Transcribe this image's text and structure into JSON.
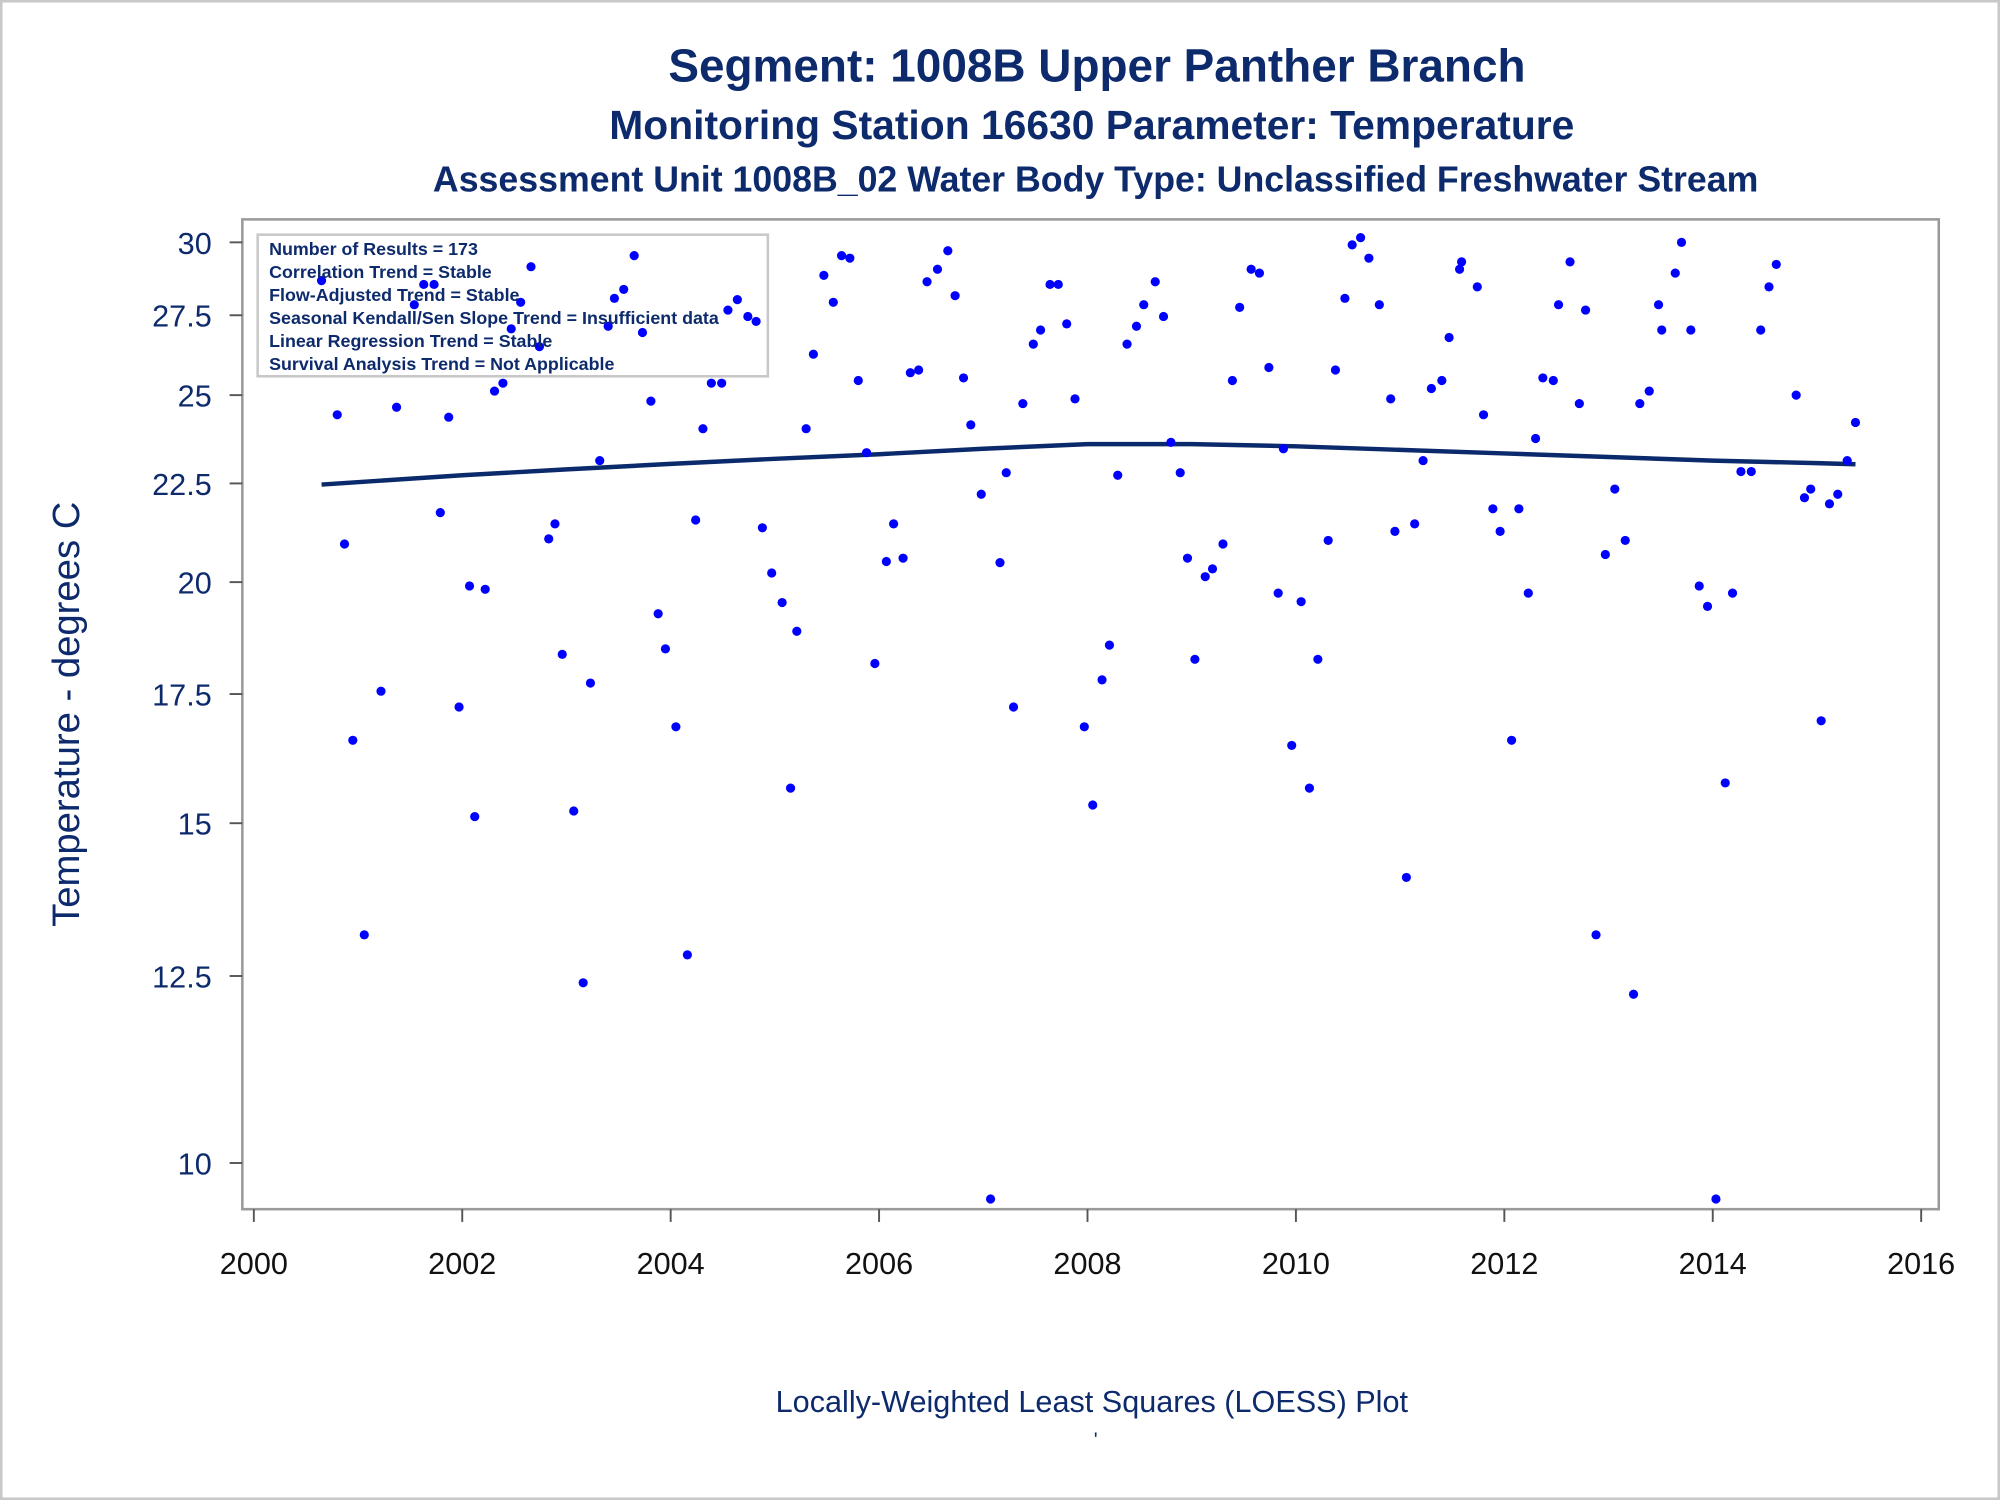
{
  "chart_data": {
    "type": "scatter",
    "title": "Segment: 1008B  Upper Panther Branch",
    "subtitle": "Monitoring Station 16630 Parameter: Temperature",
    "subtitle2": "Assessment Unit 1008B_02   Water Body Type: Unclassified Freshwater Stream",
    "xlabel": "",
    "ylabel": "Temperature - degrees C",
    "footnote": "Locally-Weighted Least Squares (LOESS) Plot",
    "footnote_mark": "'",
    "xlim": [
      2000,
      2016
    ],
    "ylim": [
      9.4,
      30.7
    ],
    "yscale": "log",
    "xticks": [
      "2000",
      "2002",
      "2004",
      "2006",
      "2008",
      "2010",
      "2012",
      "2014",
      "2016"
    ],
    "xtick_values": [
      2000,
      2002,
      2004,
      2006,
      2008,
      2010,
      2012,
      2014,
      2016
    ],
    "yticks": [
      "30",
      "27.5",
      "25",
      "22.5",
      "20",
      "17.5",
      "15",
      "12.5",
      "10"
    ],
    "ytick_values": [
      30,
      27.5,
      25,
      22.5,
      20,
      17.5,
      15,
      12.5,
      10
    ],
    "grid": false,
    "legend": {
      "placement": "top-left",
      "lines": [
        "Number of Results = 173",
        "Correlation Trend = Stable",
        "Flow-Adjusted Trend = Stable",
        "Seasonal Kendall/Sen Slope Trend = Insufficient data",
        "Linear Regression Trend = Stable",
        "Survival Analysis Trend = Not Applicable"
      ]
    },
    "colors": {
      "points": "#0000ff",
      "loess": "#0b2a6b",
      "text": "#0d2a6c"
    },
    "series": [
      {
        "name": "Temperature",
        "type": "scatter",
        "points": [
          [
            2000.65,
            28.66
          ],
          [
            2000.8,
            24.42
          ],
          [
            2000.87,
            20.93
          ],
          [
            2000.95,
            16.56
          ],
          [
            2001.06,
            13.13
          ],
          [
            2001.22,
            17.56
          ],
          [
            2001.37,
            24.64
          ],
          [
            2001.54,
            27.85
          ],
          [
            2001.63,
            28.53
          ],
          [
            2001.73,
            28.53
          ],
          [
            2001.79,
            21.73
          ],
          [
            2001.87,
            24.35
          ],
          [
            2001.97,
            17.23
          ],
          [
            2002.07,
            19.91
          ],
          [
            2002.12,
            15.12
          ],
          [
            2002.22,
            19.83
          ],
          [
            2002.31,
            25.12
          ],
          [
            2002.39,
            25.36
          ],
          [
            2002.47,
            27.06
          ],
          [
            2002.56,
            27.93
          ],
          [
            2002.66,
            29.14
          ],
          [
            2002.74,
            26.49
          ],
          [
            2002.83,
            21.06
          ],
          [
            2002.89,
            21.44
          ],
          [
            2002.96,
            18.35
          ],
          [
            2003.07,
            15.22
          ],
          [
            2003.16,
            12.4
          ],
          [
            2003.23,
            17.73
          ],
          [
            2003.32,
            23.12
          ],
          [
            2003.4,
            27.14
          ],
          [
            2003.46,
            28.06
          ],
          [
            2003.55,
            28.36
          ],
          [
            2003.65,
            29.53
          ],
          [
            2003.73,
            26.94
          ],
          [
            2003.81,
            24.82
          ],
          [
            2003.88,
            19.26
          ],
          [
            2003.95,
            18.47
          ],
          [
            2004.05,
            16.83
          ],
          [
            2004.16,
            12.82
          ],
          [
            2004.24,
            21.54
          ],
          [
            2004.31,
            24.02
          ],
          [
            2004.39,
            25.36
          ],
          [
            2004.49,
            25.36
          ],
          [
            2004.55,
            27.67
          ],
          [
            2004.64,
            28.02
          ],
          [
            2004.74,
            27.46
          ],
          [
            2004.82,
            27.3
          ],
          [
            2004.88,
            21.34
          ],
          [
            2004.97,
            20.22
          ],
          [
            2005.07,
            19.52
          ],
          [
            2005.15,
            15.64
          ],
          [
            2005.21,
            18.86
          ],
          [
            2005.3,
            24.02
          ],
          [
            2005.37,
            26.25
          ],
          [
            2005.47,
            28.84
          ],
          [
            2005.56,
            27.93
          ],
          [
            2005.64,
            29.53
          ],
          [
            2005.72,
            29.44
          ],
          [
            2005.8,
            25.44
          ],
          [
            2005.88,
            23.34
          ],
          [
            2005.96,
            18.15
          ],
          [
            2006.07,
            20.5
          ],
          [
            2006.14,
            21.44
          ],
          [
            2006.23,
            20.58
          ],
          [
            2006.3,
            25.68
          ],
          [
            2006.38,
            25.76
          ],
          [
            2006.46,
            28.62
          ],
          [
            2006.56,
            29.05
          ],
          [
            2006.66,
            29.7
          ],
          [
            2006.73,
            28.15
          ],
          [
            2006.81,
            25.52
          ],
          [
            2006.88,
            24.13
          ],
          [
            2006.98,
            22.21
          ],
          [
            2007.16,
            20.47
          ],
          [
            2007.07,
            9.58
          ],
          [
            2007.22,
            22.79
          ],
          [
            2007.29,
            17.23
          ],
          [
            2007.38,
            24.75
          ],
          [
            2007.48,
            26.57
          ],
          [
            2007.55,
            27.02
          ],
          [
            2007.64,
            28.53
          ],
          [
            2007.72,
            28.53
          ],
          [
            2007.8,
            27.22
          ],
          [
            2007.88,
            24.89
          ],
          [
            2007.97,
            16.83
          ],
          [
            2008.05,
            15.33
          ],
          [
            2008.14,
            17.8
          ],
          [
            2008.21,
            18.55
          ],
          [
            2008.29,
            22.72
          ],
          [
            2008.38,
            26.57
          ],
          [
            2008.47,
            27.14
          ],
          [
            2008.54,
            27.85
          ],
          [
            2008.65,
            28.62
          ],
          [
            2008.73,
            27.46
          ],
          [
            2008.8,
            23.63
          ],
          [
            2008.89,
            22.79
          ],
          [
            2008.96,
            20.58
          ],
          [
            2009.03,
            18.24
          ],
          [
            2009.13,
            20.13
          ],
          [
            2009.2,
            20.32
          ],
          [
            2009.3,
            20.93
          ],
          [
            2009.39,
            25.44
          ],
          [
            2009.46,
            27.76
          ],
          [
            2009.57,
            29.05
          ],
          [
            2009.65,
            28.92
          ],
          [
            2009.74,
            25.84
          ],
          [
            2009.83,
            19.74
          ],
          [
            2009.88,
            23.45
          ],
          [
            2009.96,
            16.46
          ],
          [
            2010.05,
            19.54
          ],
          [
            2010.13,
            15.64
          ],
          [
            2010.21,
            18.24
          ],
          [
            2010.31,
            21.02
          ],
          [
            2010.38,
            25.76
          ],
          [
            2010.47,
            28.06
          ],
          [
            2010.54,
            29.91
          ],
          [
            2010.62,
            30.17
          ],
          [
            2010.7,
            29.44
          ],
          [
            2010.8,
            27.85
          ],
          [
            2010.91,
            24.89
          ],
          [
            2010.95,
            21.25
          ],
          [
            2011.06,
            14.06
          ],
          [
            2011.14,
            21.44
          ],
          [
            2011.22,
            23.12
          ],
          [
            2011.3,
            25.2
          ],
          [
            2011.4,
            25.44
          ],
          [
            2011.47,
            26.78
          ],
          [
            2011.57,
            29.05
          ],
          [
            2011.59,
            29.31
          ],
          [
            2011.74,
            28.45
          ],
          [
            2011.8,
            24.42
          ],
          [
            2011.89,
            21.83
          ],
          [
            2011.96,
            21.25
          ],
          [
            2012.07,
            16.56
          ],
          [
            2012.14,
            21.83
          ],
          [
            2012.23,
            19.74
          ],
          [
            2012.3,
            23.74
          ],
          [
            2012.37,
            25.52
          ],
          [
            2012.47,
            25.44
          ],
          [
            2012.52,
            27.85
          ],
          [
            2012.63,
            29.31
          ],
          [
            2012.72,
            24.75
          ],
          [
            2012.78,
            27.67
          ],
          [
            2012.88,
            13.13
          ],
          [
            2012.97,
            20.67
          ],
          [
            2013.06,
            22.35
          ],
          [
            2013.16,
            21.02
          ],
          [
            2013.24,
            12.23
          ],
          [
            2013.3,
            24.75
          ],
          [
            2013.39,
            25.12
          ],
          [
            2013.48,
            27.85
          ],
          [
            2013.51,
            27.02
          ],
          [
            2013.64,
            28.92
          ],
          [
            2013.7,
            30.0
          ],
          [
            2013.79,
            27.02
          ],
          [
            2013.87,
            19.91
          ],
          [
            2013.95,
            19.43
          ],
          [
            2014.03,
            9.58
          ],
          [
            2014.12,
            15.74
          ],
          [
            2014.19,
            19.74
          ],
          [
            2014.27,
            22.82
          ],
          [
            2014.37,
            22.82
          ],
          [
            2014.46,
            27.02
          ],
          [
            2014.54,
            28.45
          ],
          [
            2014.61,
            29.22
          ],
          [
            2014.8,
            25.0
          ],
          [
            2014.88,
            22.12
          ],
          [
            2014.94,
            22.35
          ],
          [
            2015.04,
            16.95
          ],
          [
            2015.12,
            21.96
          ],
          [
            2015.2,
            22.21
          ],
          [
            2015.29,
            23.12
          ],
          [
            2015.37,
            24.2
          ]
        ]
      },
      {
        "name": "LOESS",
        "type": "line",
        "points": [
          [
            2000.65,
            22.47
          ],
          [
            2002,
            22.72
          ],
          [
            2003,
            22.88
          ],
          [
            2004,
            23.03
          ],
          [
            2005,
            23.17
          ],
          [
            2006,
            23.3
          ],
          [
            2007,
            23.45
          ],
          [
            2008,
            23.58
          ],
          [
            2009,
            23.58
          ],
          [
            2010,
            23.52
          ],
          [
            2011,
            23.42
          ],
          [
            2012,
            23.32
          ],
          [
            2013,
            23.22
          ],
          [
            2014,
            23.12
          ],
          [
            2015,
            23.05
          ],
          [
            2015.37,
            23.02
          ]
        ]
      }
    ]
  }
}
